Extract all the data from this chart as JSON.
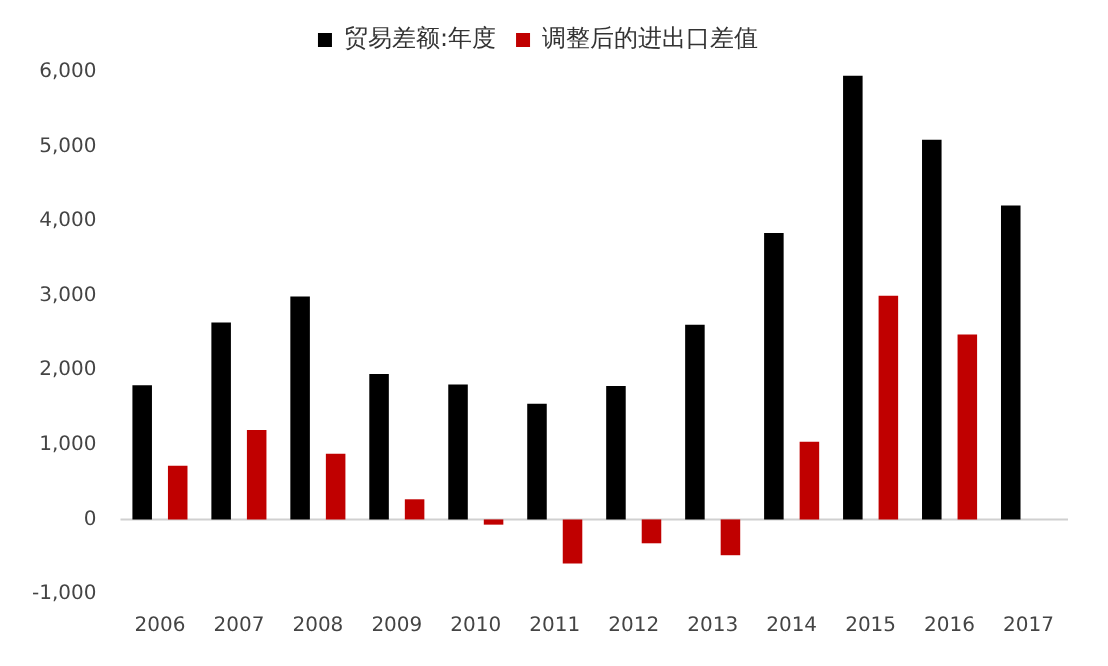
{
  "chart_data": {
    "type": "bar",
    "categories": [
      "2006",
      "2007",
      "2008",
      "2009",
      "2010",
      "2011",
      "2012",
      "2013",
      "2014",
      "2015",
      "2016",
      "2017"
    ],
    "series": [
      {
        "name": "贸易差额:年度",
        "color": "#000000",
        "values": [
          1800,
          2640,
          2990,
          1950,
          1810,
          1550,
          1790,
          2610,
          3840,
          5950,
          5090,
          4210
        ]
      },
      {
        "name": "调整后的进出口差值",
        "color": "#c00000",
        "values": [
          720,
          1200,
          880,
          270,
          -70,
          -590,
          -320,
          -480,
          1040,
          3000,
          2480,
          null
        ]
      }
    ],
    "ylim": [
      -1000,
      6000
    ],
    "yticks": [
      {
        "value": -1000,
        "label": "-1,000"
      },
      0,
      {
        "value": 1000,
        "label": "1,000"
      },
      {
        "value": 2000,
        "label": "2,000"
      },
      {
        "value": 3000,
        "label": "3,000"
      },
      {
        "value": 4000,
        "label": "4,000"
      },
      {
        "value": 5000,
        "label": "5,000"
      },
      {
        "value": 6000,
        "label": "6,000"
      }
    ],
    "ref_lines": [
      {
        "axis": "y",
        "value": 0,
        "color": "#d0d0d0"
      }
    ],
    "legend": "top"
  }
}
